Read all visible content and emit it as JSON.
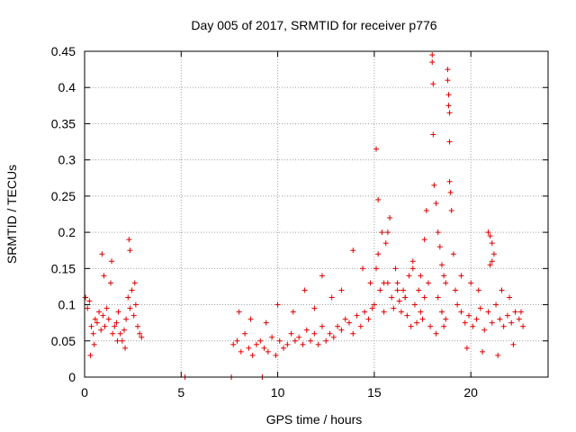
{
  "chart_data": {
    "type": "scatter",
    "title": "Day 005 of 2017, SRMTID for receiver p776",
    "xlabel": "GPS time / hours",
    "ylabel": "SRMTID / TECUs",
    "xlim": [
      0,
      24
    ],
    "ylim": [
      0,
      0.45
    ],
    "xticks": [
      0,
      5,
      10,
      15,
      20
    ],
    "xtick_labels": [
      "0",
      "5",
      "10",
      "15",
      "20"
    ],
    "yticks": [
      0,
      0.05,
      0.1,
      0.15,
      0.2,
      0.25,
      0.3,
      0.35,
      0.4,
      0.45
    ],
    "ytick_labels": [
      "0",
      "0.05",
      "0.1",
      "0.15",
      "0.2",
      "0.25",
      "0.3",
      "0.35",
      "0.4",
      "0.45"
    ],
    "grid": true,
    "marker": "+",
    "series": [
      {
        "name": "SRMTID",
        "color": "#e00000",
        "x": [
          0.05,
          0.15,
          0.25,
          0.35,
          0.45,
          0.55,
          0.65,
          0.75,
          0.85,
          0.95,
          1.05,
          1.15,
          1.25,
          1.35,
          1.45,
          1.55,
          1.65,
          1.75,
          1.85,
          1.95,
          2.05,
          2.15,
          2.25,
          2.35,
          2.45,
          2.55,
          2.65,
          2.75,
          2.85,
          2.95,
          0.3,
          0.9,
          1.4,
          2.3,
          2.35,
          2.6,
          0.5,
          1.0,
          1.7,
          2.1,
          5.2,
          7.6,
          9.2,
          7.7,
          7.9,
          8.1,
          8.3,
          8.5,
          8.7,
          8.9,
          9.1,
          9.3,
          9.5,
          9.7,
          9.9,
          10.1,
          10.3,
          10.5,
          10.7,
          10.9,
          11.1,
          11.3,
          11.5,
          11.7,
          11.9,
          12.1,
          12.3,
          12.5,
          12.7,
          12.9,
          13.1,
          13.3,
          13.5,
          13.7,
          13.9,
          14.1,
          14.3,
          14.5,
          14.7,
          14.9,
          8.0,
          8.6,
          9.4,
          10.0,
          10.8,
          11.4,
          11.9,
          12.3,
          12.8,
          13.3,
          13.9,
          14.4,
          14.8,
          15.0,
          15.1,
          15.2,
          15.3,
          15.4,
          15.5,
          15.6,
          15.7,
          15.8,
          15.9,
          16.0,
          16.1,
          16.2,
          16.3,
          16.4,
          16.5,
          16.6,
          16.7,
          16.8,
          16.9,
          17.0,
          17.1,
          17.2,
          17.3,
          17.4,
          17.5,
          17.6,
          17.7,
          17.8,
          17.9,
          15.1,
          15.2,
          15.5,
          15.7,
          16.2,
          16.6,
          17.0,
          17.4,
          17.6,
          18.0,
          18.0,
          18.05,
          18.05,
          18.1,
          18.2,
          18.3,
          18.4,
          18.5,
          18.6,
          18.7,
          18.8,
          18.8,
          18.85,
          18.85,
          18.9,
          18.9,
          18.9,
          18.95,
          19.0,
          19.1,
          19.2,
          18.3,
          18.5,
          18.7,
          18.2,
          18.6,
          19.3,
          19.5,
          19.7,
          19.9,
          20.1,
          20.3,
          20.5,
          20.7,
          20.9,
          21.1,
          21.3,
          21.5,
          21.7,
          21.9,
          22.1,
          22.3,
          22.5,
          22.7,
          20.9,
          21.0,
          21.1,
          21.2,
          21.0,
          21.1,
          19.5,
          20.0,
          20.4,
          21.6,
          22.0,
          22.6,
          19.8,
          20.6,
          21.4,
          22.2
        ],
        "y": [
          0.11,
          0.095,
          0.105,
          0.07,
          0.06,
          0.08,
          0.075,
          0.09,
          0.065,
          0.085,
          0.07,
          0.095,
          0.08,
          0.13,
          0.06,
          0.07,
          0.075,
          0.09,
          0.06,
          0.05,
          0.065,
          0.08,
          0.11,
          0.095,
          0.12,
          0.085,
          0.1,
          0.07,
          0.06,
          0.055,
          0.03,
          0.17,
          0.16,
          0.19,
          0.175,
          0.13,
          0.045,
          0.14,
          0.05,
          0.04,
          0.0,
          0.0,
          0.0,
          0.045,
          0.05,
          0.035,
          0.06,
          0.04,
          0.03,
          0.045,
          0.05,
          0.04,
          0.035,
          0.055,
          0.03,
          0.05,
          0.04,
          0.045,
          0.06,
          0.05,
          0.055,
          0.045,
          0.065,
          0.05,
          0.06,
          0.045,
          0.07,
          0.05,
          0.06,
          0.055,
          0.07,
          0.065,
          0.08,
          0.075,
          0.06,
          0.085,
          0.07,
          0.09,
          0.08,
          0.095,
          0.09,
          0.08,
          0.075,
          0.1,
          0.09,
          0.12,
          0.095,
          0.14,
          0.11,
          0.12,
          0.175,
          0.15,
          0.13,
          0.1,
          0.315,
          0.245,
          0.12,
          0.2,
          0.09,
          0.185,
          0.13,
          0.22,
          0.11,
          0.095,
          0.15,
          0.13,
          0.105,
          0.09,
          0.12,
          0.11,
          0.085,
          0.14,
          0.07,
          0.16,
          0.1,
          0.075,
          0.12,
          0.09,
          0.08,
          0.11,
          0.23,
          0.13,
          0.07,
          0.15,
          0.17,
          0.13,
          0.2,
          0.12,
          0.11,
          0.15,
          0.14,
          0.19,
          0.445,
          0.435,
          0.405,
          0.335,
          0.265,
          0.24,
          0.2,
          0.18,
          0.155,
          0.14,
          0.13,
          0.425,
          0.41,
          0.39,
          0.375,
          0.365,
          0.325,
          0.27,
          0.255,
          0.23,
          0.17,
          0.12,
          0.11,
          0.09,
          0.08,
          0.06,
          0.07,
          0.1,
          0.09,
          0.075,
          0.085,
          0.07,
          0.08,
          0.095,
          0.065,
          0.09,
          0.075,
          0.1,
          0.08,
          0.07,
          0.085,
          0.075,
          0.09,
          0.08,
          0.07,
          0.2,
          0.195,
          0.185,
          0.17,
          0.155,
          0.16,
          0.14,
          0.13,
          0.12,
          0.12,
          0.11,
          0.09,
          0.04,
          0.035,
          0.03,
          0.045
        ]
      }
    ]
  }
}
